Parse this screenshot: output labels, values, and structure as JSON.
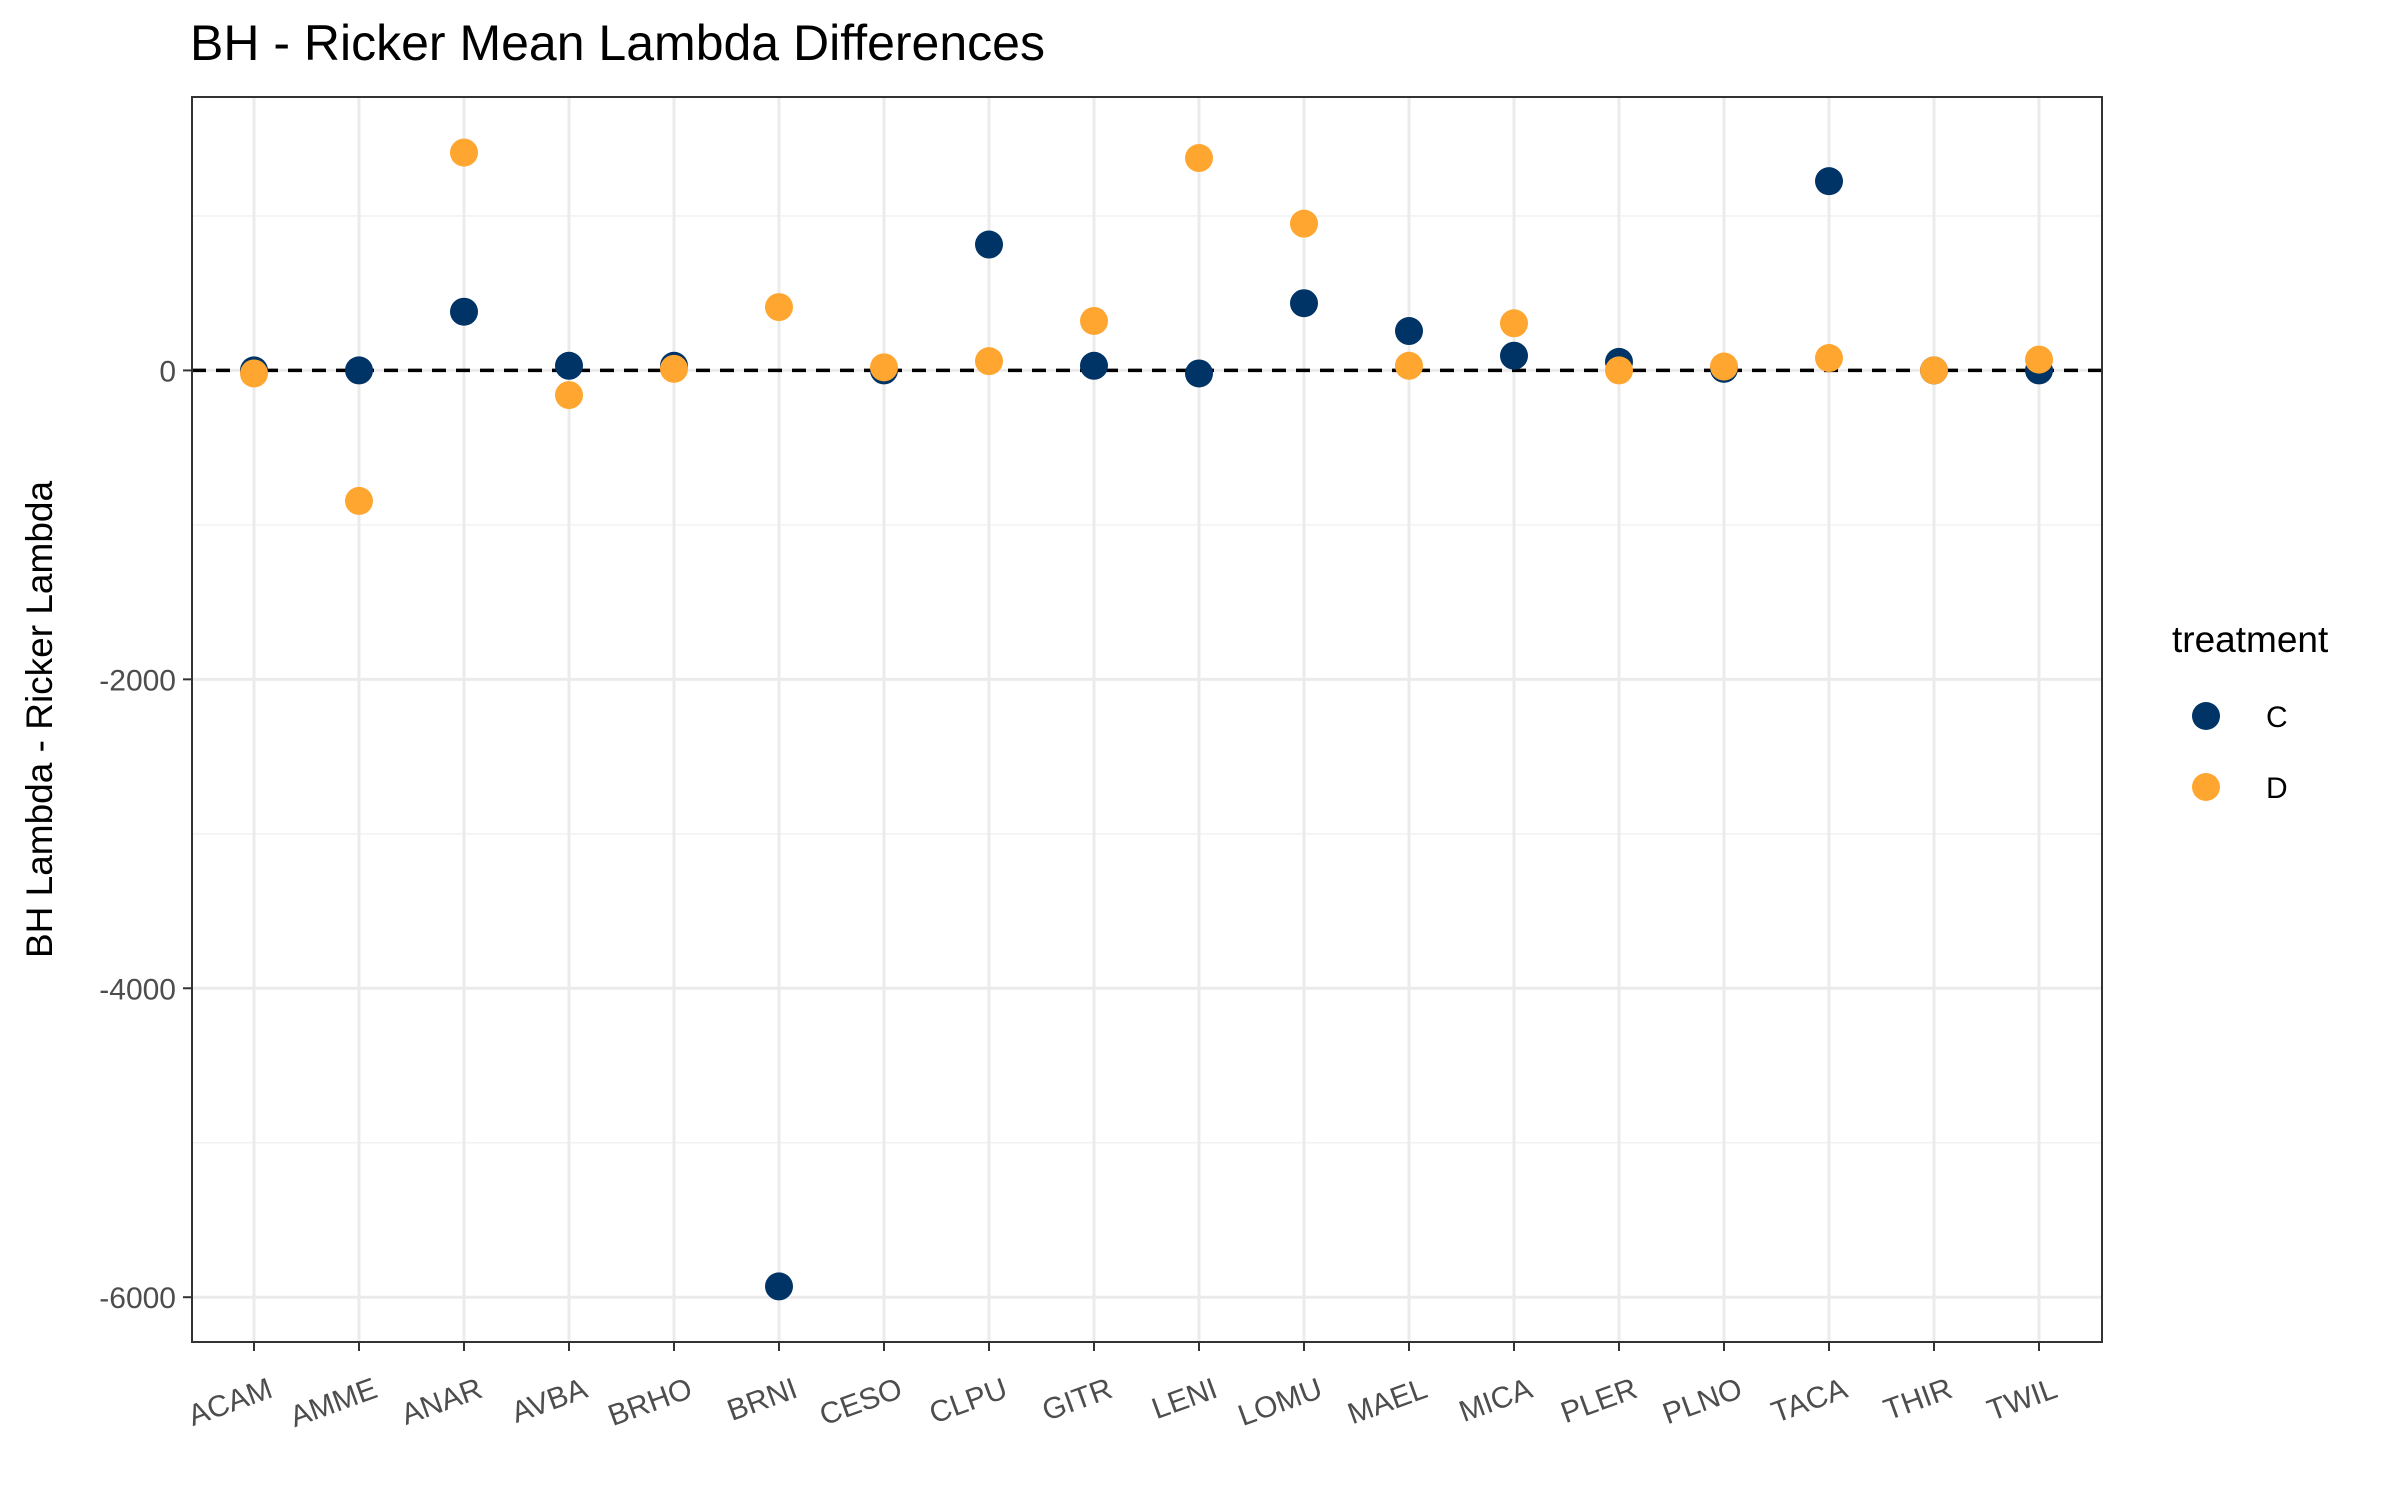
{
  "chart_data": {
    "type": "scatter",
    "title": "BH - Ricker Mean Lambda Differences",
    "xlabel": "",
    "ylabel": "BH Lambda - Ricker Lambda",
    "categories": [
      "ACAM",
      "AMME",
      "ANAR",
      "AVBA",
      "BRHO",
      "BRNI",
      "CESO",
      "CLPU",
      "GITR",
      "LENI",
      "LOMU",
      "MAEL",
      "MICA",
      "PLER",
      "PLNO",
      "TACA",
      "THIR",
      "TWIL"
    ],
    "ylim": [
      -6290,
      1770
    ],
    "yticks": [
      0,
      -2000,
      -4000,
      -6000
    ],
    "ytick_labels": [
      "0",
      "-2000",
      "-4000",
      "-6000"
    ],
    "grid": true,
    "reference_line": {
      "y": 0,
      "style": "dashed",
      "color": "#000000"
    },
    "legend": {
      "title": "treatment",
      "position": "right"
    },
    "series": [
      {
        "name": "C",
        "color": "#003366",
        "values": [
          0,
          0,
          380,
          30,
          30,
          -5930,
          0,
          815,
          30,
          -20,
          435,
          255,
          95,
          55,
          10,
          1225,
          0,
          0
        ]
      },
      {
        "name": "D",
        "color": "#FFA630",
        "values": [
          -20,
          -845,
          1410,
          -160,
          10,
          410,
          20,
          60,
          320,
          1375,
          950,
          30,
          305,
          0,
          25,
          80,
          0,
          70
        ]
      }
    ]
  }
}
